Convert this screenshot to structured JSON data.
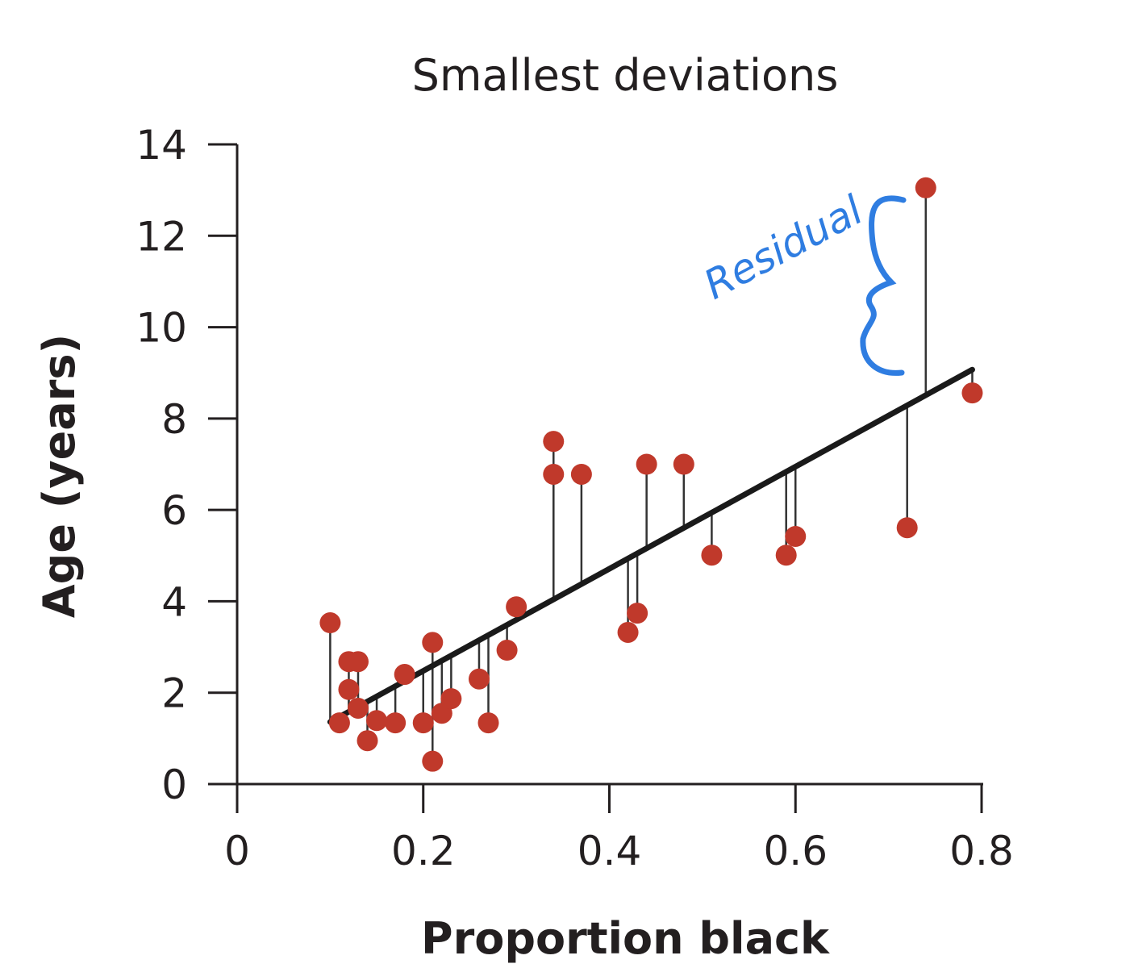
{
  "chart_data": {
    "type": "scatter",
    "title": "Smallest deviations",
    "xlabel": "Proportion black",
    "ylabel": "Age (years)",
    "xlim": [
      0,
      0.8
    ],
    "ylim": [
      0,
      14
    ],
    "xticks": [
      "0",
      "0.2",
      "0.4",
      "0.6",
      "0.8"
    ],
    "yticks": [
      "0",
      "2",
      "4",
      "6",
      "8",
      "10",
      "12",
      "14"
    ],
    "grid": false,
    "point_color": "#c0392b",
    "line_color": "#1a1a1a",
    "annotation_color": "#2f7de1",
    "annotation": "Residual",
    "points": [
      {
        "x": 0.1,
        "y": 3.53
      },
      {
        "x": 0.11,
        "y": 1.34
      },
      {
        "x": 0.12,
        "y": 2.68
      },
      {
        "x": 0.13,
        "y": 2.68
      },
      {
        "x": 0.12,
        "y": 2.07
      },
      {
        "x": 0.13,
        "y": 1.66
      },
      {
        "x": 0.14,
        "y": 0.95
      },
      {
        "x": 0.15,
        "y": 1.39
      },
      {
        "x": 0.17,
        "y": 1.34
      },
      {
        "x": 0.18,
        "y": 2.4
      },
      {
        "x": 0.2,
        "y": 1.34
      },
      {
        "x": 0.21,
        "y": 3.1
      },
      {
        "x": 0.21,
        "y": 0.5
      },
      {
        "x": 0.22,
        "y": 1.55
      },
      {
        "x": 0.23,
        "y": 1.87
      },
      {
        "x": 0.26,
        "y": 2.3
      },
      {
        "x": 0.27,
        "y": 1.34
      },
      {
        "x": 0.29,
        "y": 2.93
      },
      {
        "x": 0.3,
        "y": 3.88
      },
      {
        "x": 0.34,
        "y": 7.5
      },
      {
        "x": 0.34,
        "y": 6.78
      },
      {
        "x": 0.37,
        "y": 6.78
      },
      {
        "x": 0.42,
        "y": 3.32
      },
      {
        "x": 0.43,
        "y": 3.74
      },
      {
        "x": 0.44,
        "y": 7.0
      },
      {
        "x": 0.48,
        "y": 7.0
      },
      {
        "x": 0.51,
        "y": 5.01
      },
      {
        "x": 0.59,
        "y": 5.01
      },
      {
        "x": 0.6,
        "y": 5.42
      },
      {
        "x": 0.72,
        "y": 5.61
      },
      {
        "x": 0.74,
        "y": 13.05
      },
      {
        "x": 0.79,
        "y": 8.56
      }
    ],
    "fit_line": {
      "x0": 0.1,
      "y0": 1.36,
      "x1": 0.79,
      "y1": 9.07
    }
  }
}
